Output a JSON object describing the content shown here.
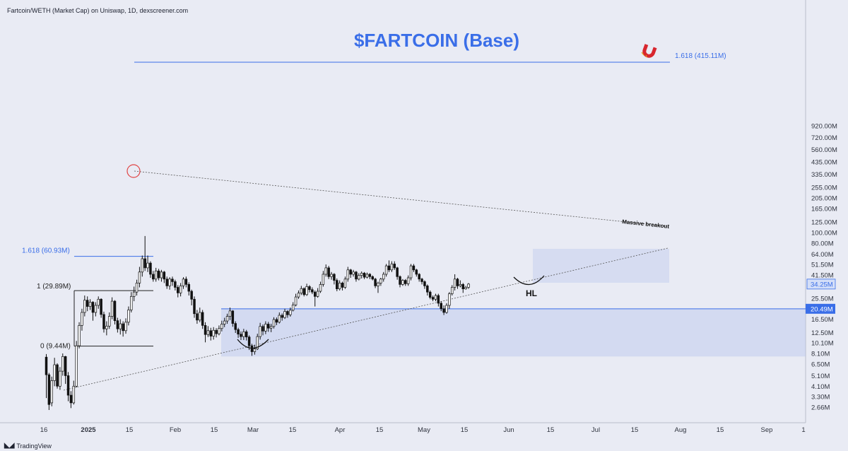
{
  "chart_data": {
    "type": "candlestick",
    "source": "Fartcoin/WETH (Market Cap) on Uniswap, 1D, dexscreener.com",
    "title": "$FARTCOIN (Base)",
    "watermark": "TradingView",
    "scale": "log",
    "ylim_m": [
      2.4,
      980
    ],
    "x_tick_labels": [
      "16",
      "2025",
      "15",
      "Feb",
      "15",
      "Mar",
      "15",
      "Apr",
      "15",
      "May",
      "15",
      "Jun",
      "15",
      "Jul",
      "15",
      "Aug",
      "15",
      "Sep",
      "1"
    ],
    "y_tick_labels": [
      "920.00M",
      "720.00M",
      "560.00M",
      "435.00M",
      "335.00M",
      "255.00M",
      "205.00M",
      "165.00M",
      "125.00M",
      "100.00M",
      "80.00M",
      "64.00M",
      "51.50M",
      "41.50M",
      "25.50M",
      "16.50M",
      "12.50M",
      "10.10M",
      "8.10M",
      "6.50M",
      "5.10M",
      "4.10M",
      "3.30M",
      "2.66M"
    ],
    "price_labels": [
      {
        "text": "34.25M",
        "value": 34.25,
        "style": "last"
      },
      {
        "text": "20.49M",
        "value": 20.49,
        "style": "level"
      }
    ],
    "fib_levels": [
      {
        "label": "1.618 (415.11M)",
        "value": 415.11
      },
      {
        "label": "1.618 (60.93M)",
        "value": 60.93
      },
      {
        "label": "1 (29.89M)",
        "value": 29.89
      },
      {
        "label": "0 (9.44M)",
        "value": 9.44
      }
    ],
    "annotations": {
      "breakout": "Massive breakout",
      "higher_low": "HL"
    },
    "colors": {
      "accent": "#3a6ee8",
      "candle": "#111111",
      "zone": "#b8c6ee",
      "peak_circle": "#e04545",
      "magnet": "#d8262e"
    },
    "candles": [
      [
        7.5,
        5.2,
        8,
        3.2
      ],
      [
        5.2,
        2.8,
        5.4,
        2.5
      ],
      [
        2.9,
        4.6,
        5,
        2.7
      ],
      [
        4.6,
        6.4,
        7.4,
        4.1
      ],
      [
        6.4,
        4.1,
        6.6,
        3.9
      ],
      [
        4.1,
        5.6,
        6.1,
        3.8
      ],
      [
        5.6,
        7.6,
        8.1,
        5.1
      ],
      [
        7.6,
        5.1,
        7.7,
        4.3
      ],
      [
        5.1,
        3.4,
        5.5,
        3
      ],
      [
        3.4,
        2.9,
        3.7,
        2.6
      ],
      [
        2.9,
        4.1,
        4.6,
        2.8
      ],
      [
        4.1,
        9.5,
        10.5,
        4
      ],
      [
        9.5,
        14.5,
        15.5,
        9
      ],
      [
        14.5,
        19,
        20.5,
        13
      ],
      [
        19,
        24.5,
        27,
        17.5
      ],
      [
        24.5,
        21.5,
        26.5,
        19.5
      ],
      [
        21.5,
        23.5,
        25,
        20
      ],
      [
        23.5,
        19,
        24,
        16
      ],
      [
        19,
        22,
        23.5,
        17.5
      ],
      [
        22,
        25,
        26.5,
        20.5
      ],
      [
        25,
        18.2,
        25.5,
        17
      ],
      [
        18.2,
        13.5,
        19.3,
        12.5
      ],
      [
        13.5,
        14.3,
        15.8,
        11.8
      ],
      [
        14.3,
        17.5,
        19,
        13.5
      ],
      [
        17.5,
        24,
        26,
        16.5
      ],
      [
        24,
        16,
        24.5,
        14.8
      ],
      [
        16,
        13.5,
        17,
        12.5
      ],
      [
        13.5,
        15,
        16.5,
        12
      ],
      [
        15,
        13,
        15.8,
        11.5
      ],
      [
        13,
        15.5,
        16.8,
        12.2
      ],
      [
        15.5,
        20,
        21.5,
        14.5
      ],
      [
        20,
        26.5,
        29,
        19
      ],
      [
        26.5,
        29,
        32.5,
        24
      ],
      [
        29,
        35,
        37.5,
        27
      ],
      [
        35,
        44,
        49,
        32
      ],
      [
        44,
        58,
        62,
        40
      ],
      [
        58,
        48,
        93,
        45
      ],
      [
        48,
        53,
        62,
        44
      ],
      [
        53,
        42,
        55,
        39
      ],
      [
        42,
        38,
        45,
        36
      ],
      [
        38,
        45,
        48,
        36
      ],
      [
        45,
        39,
        47,
        37
      ],
      [
        39,
        44,
        46,
        36
      ],
      [
        44,
        38,
        45,
        35
      ],
      [
        38,
        33,
        40,
        31
      ],
      [
        33,
        38,
        39.5,
        30.5
      ],
      [
        38,
        36,
        40,
        33
      ],
      [
        36,
        32,
        37.5,
        30
      ],
      [
        32,
        28.5,
        33.5,
        26
      ],
      [
        28.5,
        33,
        35,
        26.5
      ],
      [
        33,
        38,
        39.5,
        31
      ],
      [
        38,
        34,
        40,
        32
      ],
      [
        34,
        29.5,
        35.5,
        27
      ],
      [
        29.5,
        25,
        30.5,
        22
      ],
      [
        25,
        18.5,
        26.5,
        17
      ],
      [
        18.5,
        16.2,
        20,
        15
      ],
      [
        16.2,
        19,
        21,
        15.5
      ],
      [
        19,
        14.5,
        20,
        13.5
      ],
      [
        14.5,
        12,
        15.5,
        10.2
      ],
      [
        12,
        13,
        14.3,
        11.4
      ],
      [
        13,
        11.6,
        13.8,
        10.6
      ],
      [
        11.6,
        13.1,
        14,
        10.8
      ],
      [
        13.1,
        12.2,
        13.7,
        11.3
      ],
      [
        12.2,
        13.6,
        14.5,
        11.8
      ],
      [
        13.6,
        14.9,
        16,
        12.8
      ],
      [
        14.9,
        15.9,
        17,
        14
      ],
      [
        15.9,
        17.5,
        18.5,
        15
      ],
      [
        17.5,
        19.6,
        21,
        16.2
      ],
      [
        19.6,
        15.1,
        19.9,
        14.1
      ],
      [
        15.1,
        13.3,
        15.8,
        12.4
      ],
      [
        13.3,
        12.1,
        13.8,
        11.2
      ],
      [
        12.1,
        11.5,
        12.8,
        10.7
      ],
      [
        11.5,
        12.7,
        13.5,
        10.7
      ],
      [
        12.7,
        11.4,
        13.2,
        10.6
      ],
      [
        11.4,
        9.5,
        11.8,
        8.7
      ],
      [
        9.5,
        8.4,
        9.9,
        7.7
      ],
      [
        8.4,
        8.9,
        9.7,
        7.9
      ],
      [
        8.9,
        11.5,
        12.2,
        8.7
      ],
      [
        11.5,
        14.2,
        15.3,
        10.8
      ],
      [
        14.2,
        12.9,
        14.8,
        11.8
      ],
      [
        12.9,
        14.9,
        15.8,
        12.1
      ],
      [
        14.9,
        13.7,
        15.6,
        12.7
      ],
      [
        13.7,
        14.2,
        15,
        12.6
      ],
      [
        14.2,
        16.4,
        17.2,
        13.6
      ],
      [
        16.4,
        15.5,
        17.1,
        14.6
      ],
      [
        15.5,
        17.9,
        19,
        15.1
      ],
      [
        17.9,
        17.1,
        18.6,
        16
      ],
      [
        17.1,
        19.4,
        20.5,
        16.6
      ],
      [
        19.4,
        18.1,
        19.9,
        17
      ],
      [
        18.1,
        19.9,
        21,
        17.4
      ],
      [
        19.9,
        22.2,
        23.5,
        19.4
      ],
      [
        22.2,
        26.2,
        28,
        21.5
      ],
      [
        26.2,
        28.4,
        30,
        25.2
      ],
      [
        28.4,
        31.2,
        33,
        27.3
      ],
      [
        31.2,
        27.5,
        32,
        26.5
      ],
      [
        27.5,
        32.5,
        34.5,
        26.8
      ],
      [
        32.5,
        30.5,
        33.5,
        28.8
      ],
      [
        30.5,
        29,
        32,
        27.8
      ],
      [
        29,
        26.5,
        30,
        21.5
      ],
      [
        26.5,
        29.5,
        31.5,
        25.8
      ],
      [
        29.5,
        34,
        36,
        28.5
      ],
      [
        34,
        42,
        45,
        32.5
      ],
      [
        42,
        48,
        51.5,
        40
      ],
      [
        48,
        40,
        50,
        38
      ],
      [
        40,
        42,
        44,
        37.5
      ],
      [
        42,
        37,
        43,
        34
      ],
      [
        37,
        31,
        38.5,
        29.5
      ],
      [
        31,
        35,
        37,
        30
      ],
      [
        35,
        32,
        36,
        30
      ],
      [
        32,
        38,
        40,
        31
      ],
      [
        38,
        46,
        49,
        36
      ],
      [
        46,
        42,
        47,
        39
      ],
      [
        42,
        44,
        46,
        40
      ],
      [
        44,
        38,
        45,
        36
      ],
      [
        38,
        41,
        43,
        37
      ],
      [
        41,
        43,
        44.5,
        38.5
      ],
      [
        43,
        39.5,
        44,
        38
      ],
      [
        39.5,
        42,
        43.5,
        38.5
      ],
      [
        42,
        40,
        43,
        38
      ],
      [
        40,
        38,
        41,
        37
      ],
      [
        38,
        33,
        39,
        31.5
      ],
      [
        33,
        35,
        36,
        28.5
      ],
      [
        35,
        38,
        39,
        33
      ],
      [
        38,
        42,
        44,
        36
      ],
      [
        42,
        50,
        52,
        40
      ],
      [
        50,
        46,
        56,
        44
      ],
      [
        46,
        52,
        55,
        44
      ],
      [
        52,
        48,
        55,
        46
      ],
      [
        48,
        40,
        49,
        37.5
      ],
      [
        40,
        34,
        41,
        32
      ],
      [
        34,
        37,
        38,
        33
      ],
      [
        37,
        34.5,
        38,
        33
      ],
      [
        34.5,
        39,
        41,
        33
      ],
      [
        39,
        50,
        52,
        37
      ],
      [
        50,
        46,
        52,
        44
      ],
      [
        46,
        42,
        47,
        40
      ],
      [
        42,
        38,
        43,
        36
      ],
      [
        38,
        36,
        39,
        34
      ],
      [
        36,
        33,
        37,
        31
      ],
      [
        33,
        29,
        34,
        27
      ],
      [
        29,
        26,
        30,
        25
      ],
      [
        26,
        25,
        27,
        24
      ],
      [
        25,
        27,
        28,
        24
      ],
      [
        27,
        23,
        28,
        21.5
      ],
      [
        23,
        20.5,
        24,
        19.5
      ],
      [
        20.5,
        19,
        22,
        18
      ],
      [
        19,
        22,
        23,
        18.5
      ],
      [
        22,
        28,
        29,
        20.5
      ],
      [
        28,
        32,
        33.5,
        27
      ],
      [
        32,
        38,
        42,
        30
      ],
      [
        38,
        33,
        39,
        31
      ],
      [
        33,
        34,
        37,
        32
      ],
      [
        34,
        31,
        35,
        28.5
      ],
      [
        31,
        32,
        33,
        30.5
      ],
      [
        32,
        34.25,
        35,
        31
      ]
    ]
  }
}
